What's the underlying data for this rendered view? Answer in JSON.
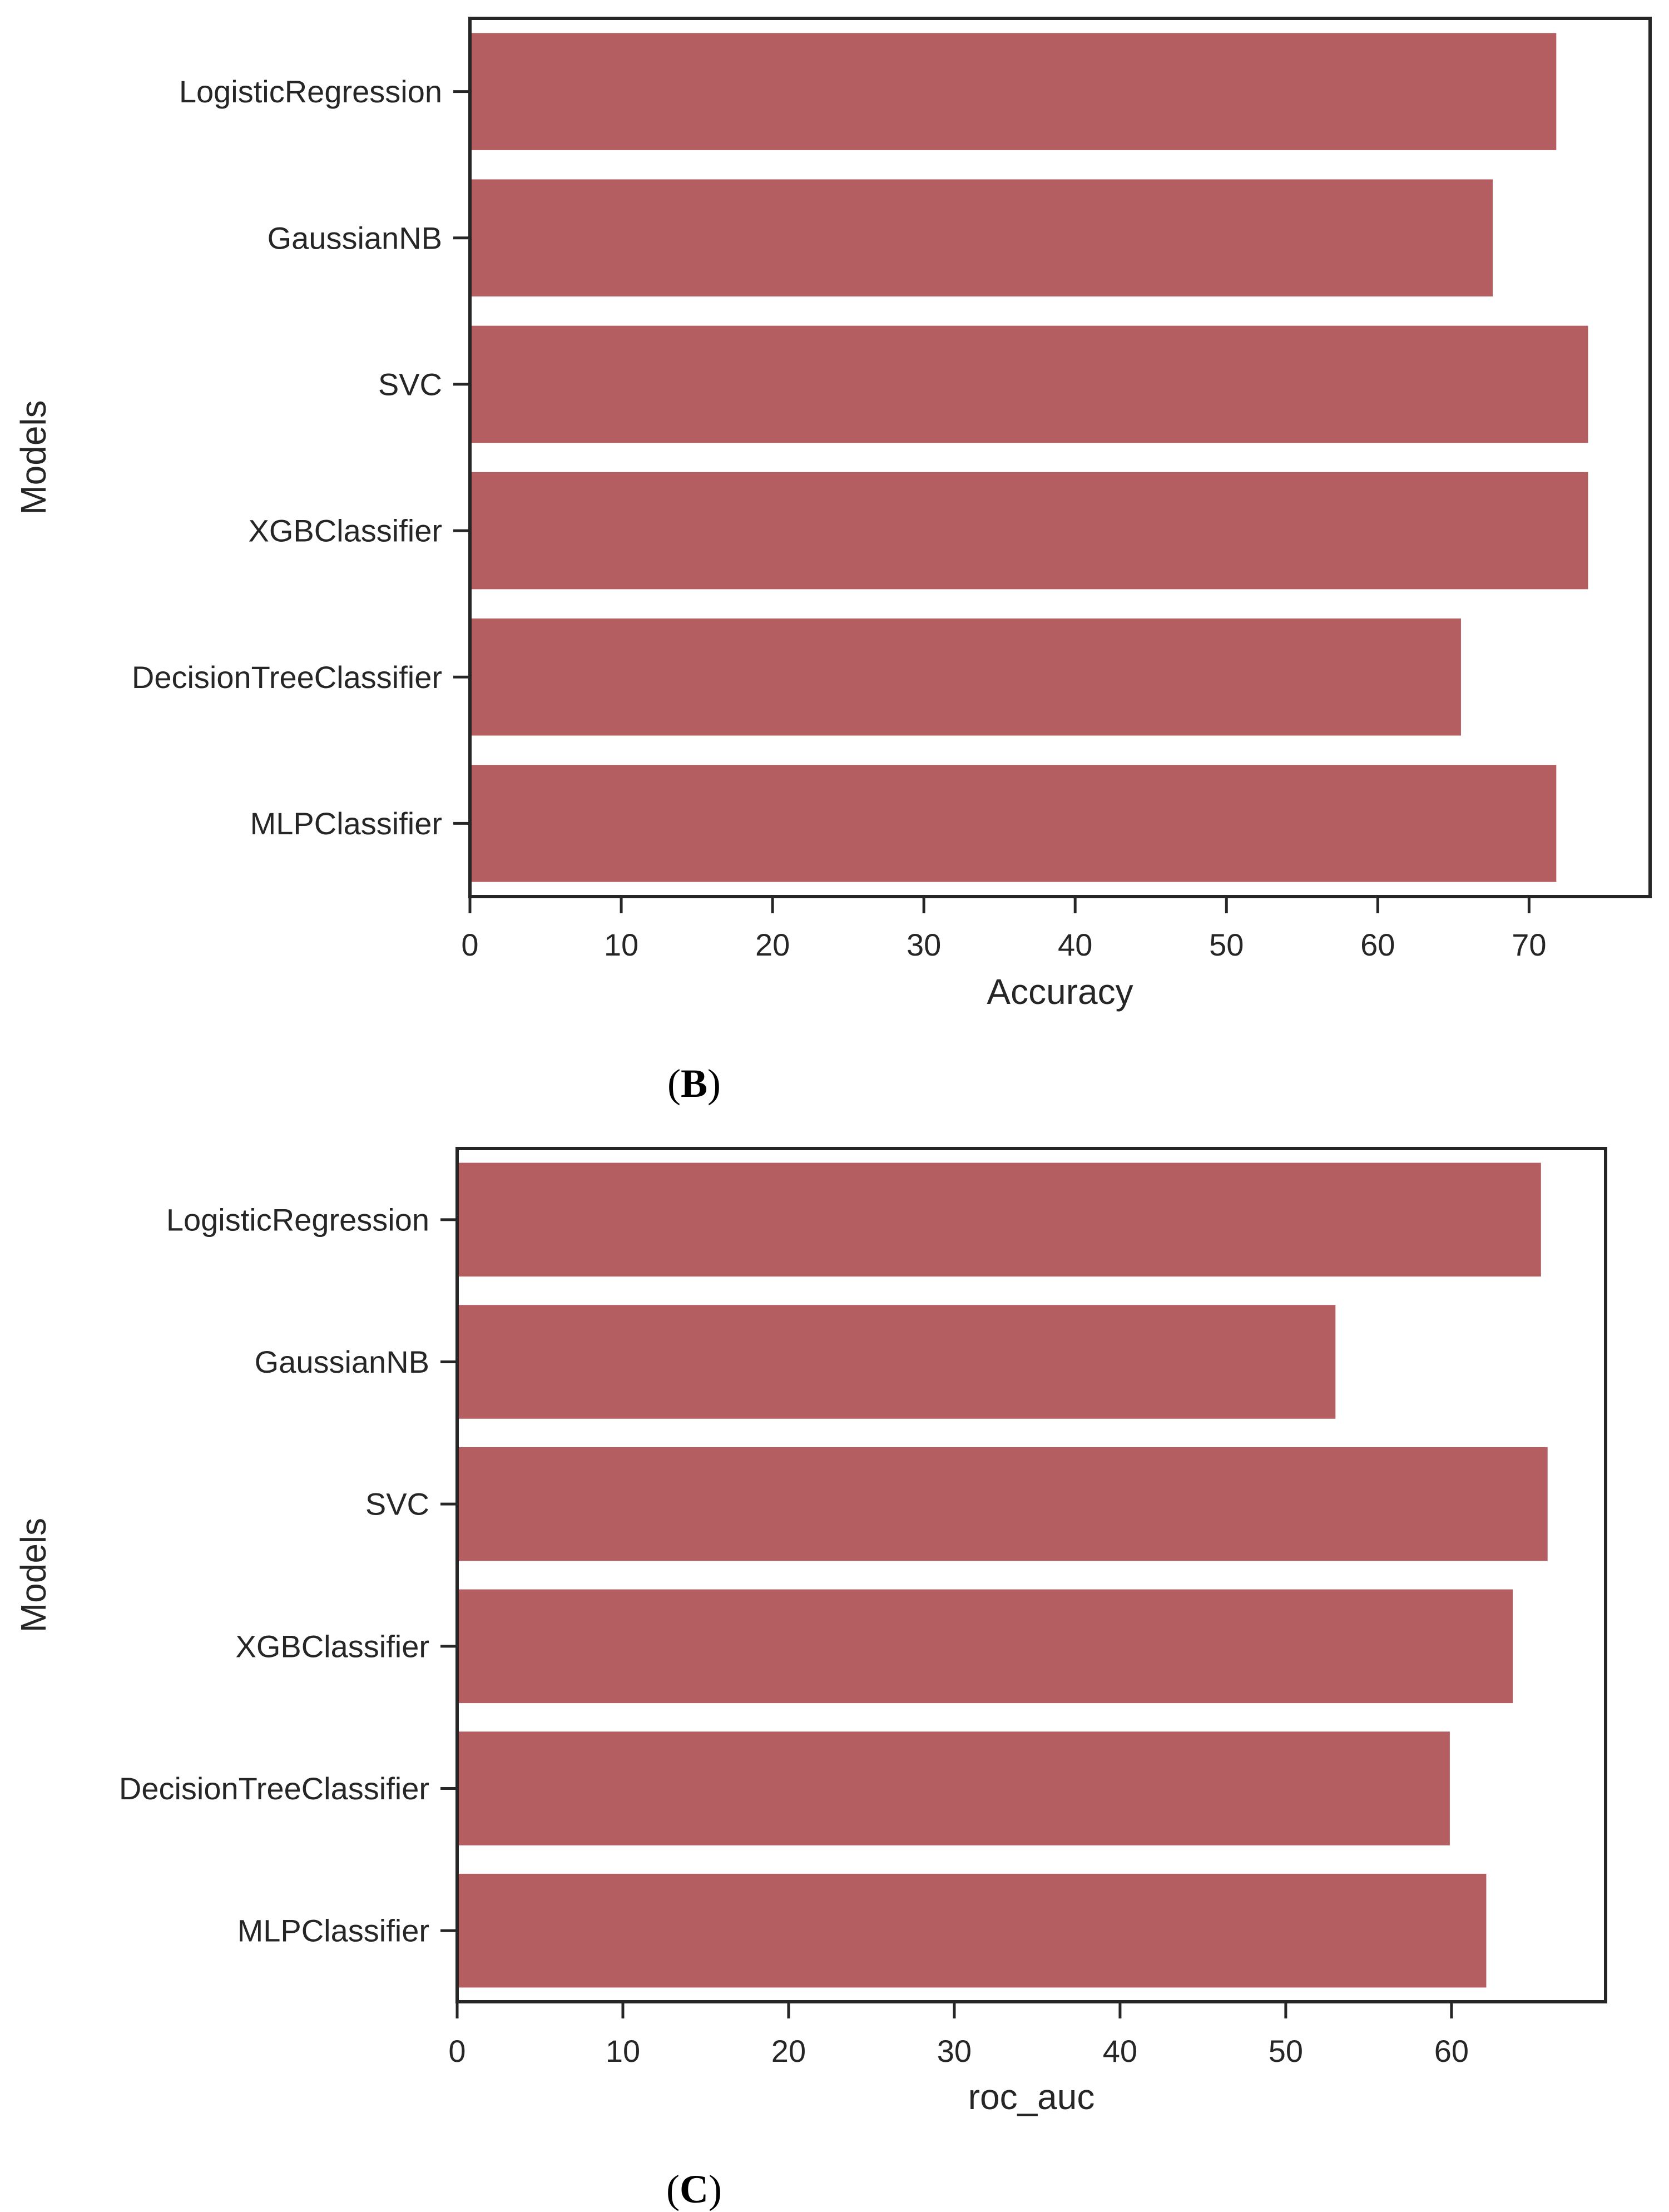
{
  "colors": {
    "bar": "#b55e62",
    "axis": "#262626"
  },
  "chart_data": [
    {
      "type": "bar",
      "orientation": "horizontal",
      "panel": "B",
      "categories": [
        "LogisticRegression",
        "GaussianNB",
        "SVC",
        "XGBClassifier",
        "DecisionTreeClassifier",
        "MLPClassifier"
      ],
      "values": [
        71.8,
        67.6,
        73.9,
        73.9,
        65.5,
        71.8
      ],
      "xlabel": "Accuracy",
      "ylabel": "Models",
      "xlim": [
        0,
        78
      ],
      "xticks": [
        0,
        10,
        20,
        30,
        40,
        50,
        60,
        70
      ],
      "xtick_labels": [
        "0",
        "10",
        "20",
        "30",
        "40",
        "50",
        "60",
        "70"
      ],
      "caption_open": "(",
      "caption_letter": "B",
      "caption_close": ")"
    },
    {
      "type": "bar",
      "orientation": "horizontal",
      "panel": "C",
      "categories": [
        "LogisticRegression",
        "GaussianNB",
        "SVC",
        "XGBClassifier",
        "DecisionTreeClassifier",
        "MLPClassifier"
      ],
      "values": [
        65.4,
        53.0,
        65.8,
        63.7,
        59.9,
        62.1
      ],
      "xlabel": "roc_auc",
      "ylabel": "Models",
      "xlim": [
        0,
        69.3
      ],
      "xticks": [
        0,
        10,
        20,
        30,
        40,
        50,
        60
      ],
      "xtick_labels": [
        "0",
        "10",
        "20",
        "30",
        "40",
        "50",
        "60"
      ],
      "caption_open": "(",
      "caption_letter": "C",
      "caption_close": ")"
    }
  ]
}
